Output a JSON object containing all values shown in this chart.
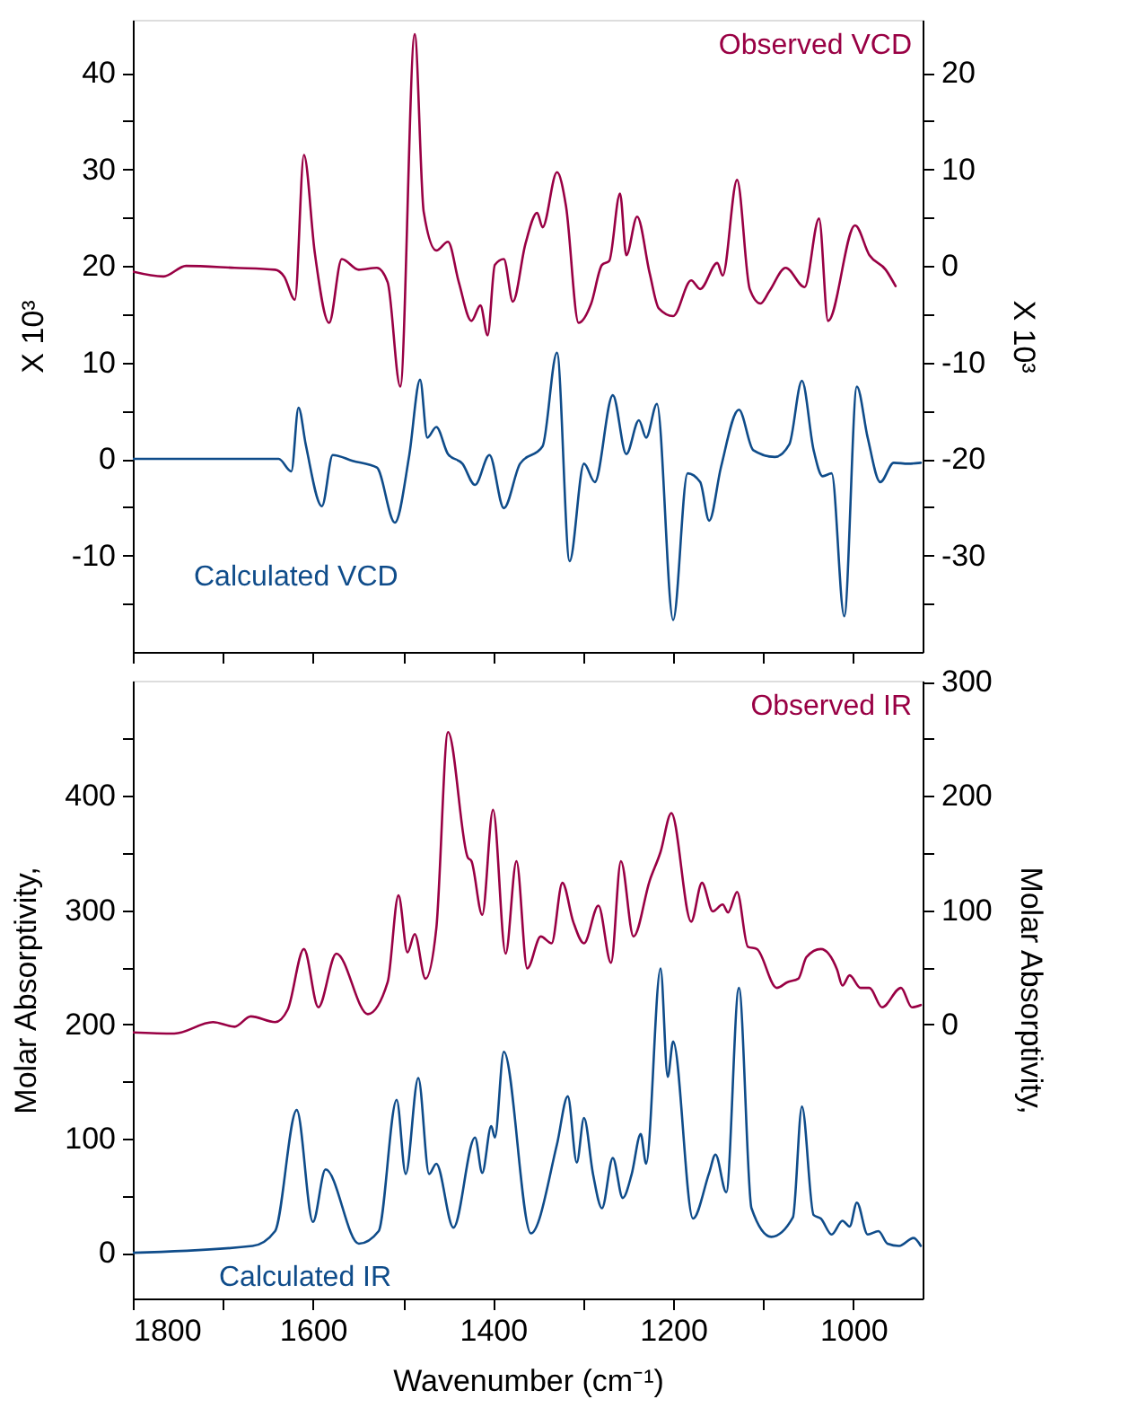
{
  "chart_data": [
    {
      "type": "line",
      "ylabel": "X 10³",
      "y2label": "X 10³",
      "tick_labels": "y",
      "grid": false,
      "xlim": [
        1800,
        923
      ],
      "xticks": [
        1800,
        {
          "value": 1700,
          "label": null
        },
        1600,
        {
          "value": 1500,
          "label": null
        },
        1400,
        {
          "value": 1300,
          "label": null
        },
        1200,
        {
          "value": 1100,
          "label": null
        },
        1000
      ],
      "ylim": [
        -20,
        45.5
      ],
      "yticks": [
        {
          "value": -15,
          "label": null
        },
        -10,
        {
          "value": -5,
          "label": null
        },
        0,
        {
          "value": 5,
          "label": null
        },
        10,
        {
          "value": 15,
          "label": null
        },
        20,
        {
          "value": 25,
          "label": null
        },
        30,
        {
          "value": 35,
          "label": null
        },
        40
      ],
      "y2lim": [
        -40,
        25.5
      ],
      "y2ticks": [
        {
          "value": -35,
          "label": null
        },
        -30,
        {
          "value": -25,
          "label": null
        },
        -20,
        {
          "value": -15,
          "label": null
        },
        -10,
        {
          "value": -5,
          "label": null
        },
        0,
        {
          "value": 5,
          "label": null
        },
        10,
        {
          "value": 15,
          "label": null
        },
        20
      ],
      "series": [
        {
          "name": "Observed VCD",
          "color": "#990044",
          "axis": "y2",
          "x": [
            1800,
            1766,
            1741,
            1687,
            1642,
            1632,
            1620,
            1610,
            1598,
            1582,
            1568,
            1549,
            1529,
            1517,
            1503,
            1487,
            1477,
            1463,
            1450,
            1438,
            1424,
            1414,
            1406,
            1398,
            1388,
            1378,
            1364,
            1351,
            1345,
            1329,
            1319,
            1305,
            1291,
            1279,
            1271,
            1259,
            1252,
            1240,
            1226,
            1216,
            1200,
            1180,
            1170,
            1151,
            1145,
            1129,
            1115,
            1103,
            1093,
            1075,
            1054,
            1038,
            1028,
            998,
            982,
            964,
            953
          ],
          "values": [
            -0.6,
            -1.1,
            0.0,
            -0.2,
            -0.4,
            -1.1,
            -3.5,
            11.5,
            1.4,
            -5.9,
            0.7,
            -0.4,
            -0.2,
            -1.7,
            -12.5,
            24.0,
            5.6,
            1.6,
            2.5,
            -1.7,
            -5.7,
            -4.1,
            -7.2,
            0.1,
            0.7,
            -3.7,
            2.3,
            5.5,
            4.0,
            9.7,
            6.2,
            -5.9,
            -3.9,
            0.1,
            0.5,
            7.5,
            1.1,
            5.1,
            -0.8,
            -4.4,
            -5.2,
            -1.5,
            -2.4,
            0.3,
            -1.0,
            8.9,
            -2.4,
            -3.9,
            -2.6,
            -0.2,
            -2.2,
            4.9,
            -5.7,
            4.2,
            1.1,
            -0.4,
            -2.1
          ]
        },
        {
          "name": "Calculated VCD",
          "color": "#0f4c8a",
          "x": [
            1800,
            1638,
            1624,
            1616,
            1608,
            1590,
            1578,
            1556,
            1529,
            1509,
            1493,
            1481,
            1473,
            1463,
            1450,
            1434,
            1420,
            1404,
            1388,
            1370,
            1345,
            1329,
            1315,
            1299,
            1287,
            1267,
            1252,
            1238,
            1230,
            1218,
            1200,
            1184,
            1170,
            1160,
            1147,
            1127,
            1111,
            1087,
            1071,
            1057,
            1044,
            1034,
            1024,
            1010,
            996,
            984,
            970,
            955,
            939,
            925
          ],
          "values": [
            0,
            0,
            -1.3,
            5.3,
            1.5,
            -4.9,
            0.4,
            -0.2,
            -0.9,
            -6.6,
            0.4,
            8.2,
            2.2,
            3.3,
            0.5,
            -0.5,
            -2.7,
            0.4,
            -5.1,
            -0.5,
            1.3,
            11.0,
            -10.6,
            -0.5,
            -2.4,
            6.6,
            0.5,
            4.0,
            2.2,
            5.7,
            -16.7,
            -1.5,
            -2.4,
            -6.4,
            -0.9,
            5.1,
            0.9,
            0.2,
            1.5,
            8.1,
            0.9,
            -1.8,
            -1.5,
            -16.3,
            7.5,
            2.2,
            -2.4,
            -0.4,
            -0.5,
            -0.4
          ]
        }
      ]
    },
    {
      "type": "line",
      "ylabel": "Molar Absorptivity,",
      "y2label": "Molar Absorptivity,",
      "xlabel": "Wavenumber (cm⁻¹)",
      "grid": false,
      "xlim": [
        1800,
        923
      ],
      "xticks": [
        1800,
        {
          "value": 1700,
          "label": null
        },
        1600,
        {
          "value": 1500,
          "label": null
        },
        1400,
        {
          "value": 1300,
          "label": null
        },
        1200,
        {
          "value": 1100,
          "label": null
        },
        1000
      ],
      "ylim": [
        -40,
        501
      ],
      "yticks": [
        0,
        {
          "value": 50,
          "label": null
        },
        100,
        {
          "value": 150,
          "label": null
        },
        200,
        {
          "value": 250,
          "label": null
        },
        300,
        {
          "value": 350,
          "label": null
        },
        400,
        {
          "value": 450,
          "label": null
        }
      ],
      "y2lim": [
        -240,
        301
      ],
      "y2ticks": [
        0,
        {
          "value": 50,
          "label": null
        },
        100,
        {
          "value": 150,
          "label": null
        },
        200,
        {
          "value": 250,
          "label": null
        },
        300
      ],
      "series": [
        {
          "name": "Observed IR",
          "color": "#990044",
          "axis": "y2",
          "x": [
            1800,
            1754,
            1711,
            1687,
            1669,
            1642,
            1628,
            1610,
            1594,
            1574,
            1539,
            1517,
            1505,
            1495,
            1487,
            1475,
            1463,
            1450,
            1428,
            1424,
            1412,
            1400,
            1386,
            1374,
            1362,
            1347,
            1335,
            1323,
            1311,
            1299,
            1283,
            1269,
            1258,
            1244,
            1226,
            1214,
            1202,
            1180,
            1168,
            1156,
            1145,
            1139,
            1129,
            1117,
            1107,
            1085,
            1073,
            1061,
            1052,
            1036,
            1018,
            1012,
            1004,
            992,
            982,
            968,
            947,
            935,
            925
          ],
          "values": [
            -7,
            -8,
            2,
            -2,
            7,
            2,
            13,
            66,
            15,
            62,
            9,
            37,
            113,
            63,
            79,
            40,
            84,
            256,
            146,
            143,
            96,
            188,
            62,
            143,
            49,
            77,
            71,
            124,
            90,
            71,
            104,
            54,
            143,
            77,
            126,
            151,
            185,
            90,
            124,
            99,
            105,
            98,
            116,
            68,
            66,
            32,
            37,
            40,
            59,
            66,
            48,
            34,
            43,
            32,
            32,
            15,
            32,
            15,
            17
          ]
        },
        {
          "name": "Calculated IR",
          "color": "#0f4c8a",
          "x": [
            1800,
            1667,
            1642,
            1618,
            1600,
            1586,
            1549,
            1527,
            1507,
            1497,
            1483,
            1471,
            1463,
            1444,
            1420,
            1412,
            1402,
            1398,
            1388,
            1358,
            1329,
            1317,
            1307,
            1299,
            1289,
            1279,
            1267,
            1256,
            1246,
            1236,
            1230,
            1214,
            1206,
            1200,
            1178,
            1160,
            1153,
            1141,
            1127,
            1113,
            1091,
            1067,
            1057,
            1044,
            1036,
            1024,
            1012,
            1004,
            996,
            984,
            972,
            962,
            949,
            933,
            925
          ],
          "values": [
            0,
            6,
            19,
            125,
            27,
            73,
            8,
            19,
            134,
            69,
            153,
            69,
            78,
            22,
            101,
            70,
            111,
            101,
            176,
            17,
            95,
            137,
            79,
            118,
            69,
            39,
            83,
            48,
            69,
            104,
            78,
            249,
            154,
            185,
            30,
            70,
            86,
            53,
            232,
            39,
            14,
            31,
            128,
            33,
            30,
            16,
            28,
            23,
            44,
            16,
            19,
            8,
            6,
            13,
            6
          ]
        }
      ]
    }
  ]
}
